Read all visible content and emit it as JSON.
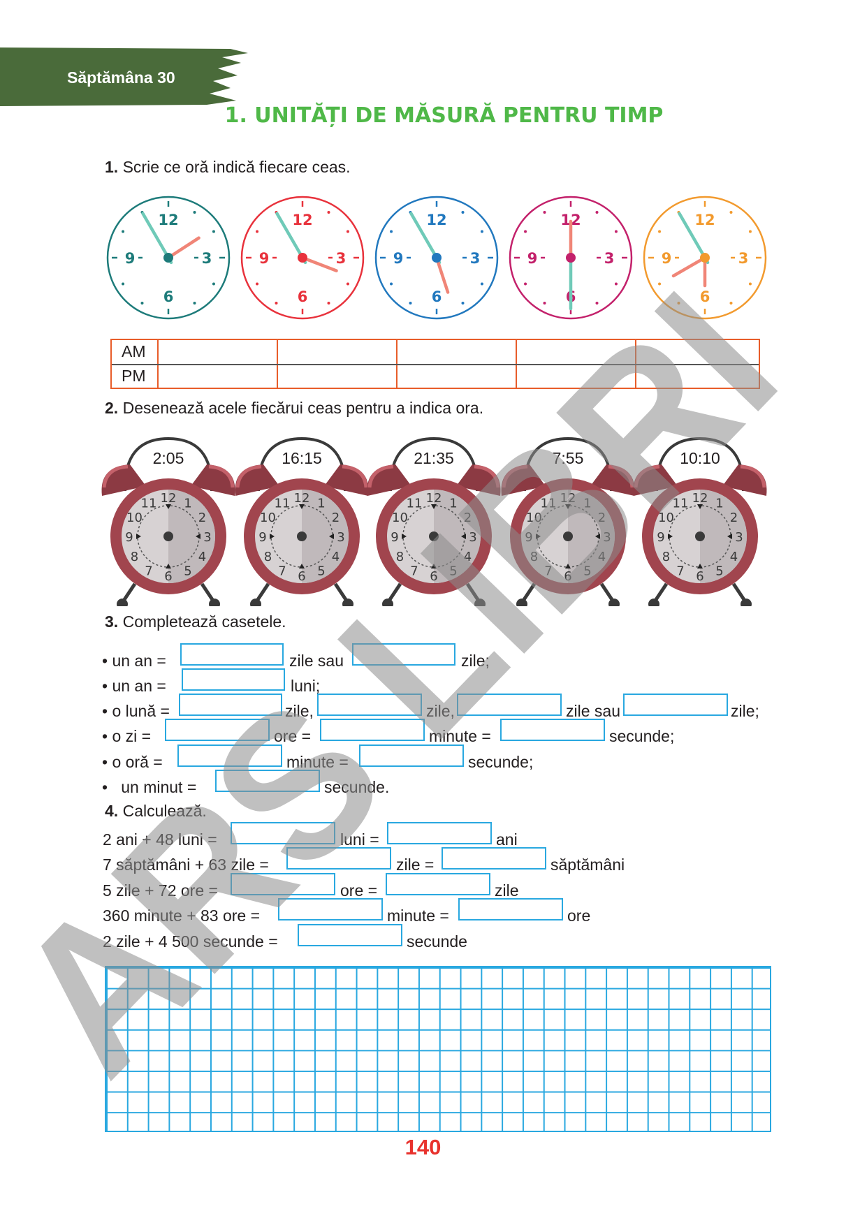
{
  "header": {
    "week": "Săptămâna 30",
    "title": "1. UNITĂȚI DE MĂSURĂ PENTRU TIMP"
  },
  "colors": {
    "banner": "#4a6b3a",
    "title": "#4fb848",
    "box": "#29a8e0",
    "table": "#e85d2a",
    "page_number": "#e8322d",
    "alarm_clock": "#a1454e"
  },
  "exercise1": {
    "number": "1.",
    "instruction": "Scrie ce oră indică fiecare ceas.",
    "clocks": [
      {
        "color": "#1d7b7a",
        "hour": 1.9,
        "minute": 55,
        "numerals": [
          "12",
          "3",
          "6",
          "9"
        ]
      },
      {
        "color": "#e8323c",
        "hour": 3.7,
        "minute": 55,
        "numerals": [
          "12",
          "3",
          "6",
          "9"
        ]
      },
      {
        "color": "#2178be",
        "hour": 5.4,
        "minute": 55,
        "numerals": [
          "12",
          "3",
          "6",
          "9"
        ]
      },
      {
        "color": "#c3216b",
        "hour": 12.0,
        "minute": 30,
        "numerals": [
          "12",
          "3",
          "6",
          "9"
        ]
      },
      {
        "color": "#f29a2e",
        "hour": 8.0,
        "minute": 55,
        "extra_hand_hour": 6.0,
        "numerals": [
          "12",
          "3",
          "6",
          "9"
        ]
      }
    ],
    "table_rows": [
      "AM",
      "PM"
    ]
  },
  "exercise2": {
    "number": "2.",
    "instruction": "Desenează acele fiecărui ceas pentru a indica ora.",
    "times": [
      "2:05",
      "16:15",
      "21:35",
      "7:55",
      "10:10"
    ],
    "dial_numbers": [
      "12",
      "1",
      "2",
      "3",
      "4",
      "5",
      "6",
      "7",
      "8",
      "9",
      "10",
      "11"
    ]
  },
  "exercise3": {
    "number": "3.",
    "instruction": "Completează casetele.",
    "lines": [
      {
        "bullet": "•",
        "parts": [
          "un an =",
          "zile sau",
          "zile;"
        ]
      },
      {
        "bullet": "•",
        "parts": [
          "un an =",
          "luni;"
        ]
      },
      {
        "bullet": "•",
        "parts": [
          "o lună =",
          "zile,",
          "zile,",
          "zile sau",
          "zile;"
        ]
      },
      {
        "bullet": "•",
        "parts": [
          "o zi =",
          "ore =",
          "minute =",
          "secunde;"
        ]
      },
      {
        "bullet": "•",
        "parts": [
          "o oră =",
          "minute =",
          "secunde;"
        ]
      },
      {
        "bullet": "•",
        "parts": [
          "un minut =",
          "secunde."
        ]
      }
    ]
  },
  "exercise4": {
    "number": "4.",
    "instruction": "Calculează.",
    "lines": [
      {
        "parts": [
          "2 ani + 48 luni =",
          "luni =",
          "ani"
        ]
      },
      {
        "parts": [
          "7 săptămâni + 63 zile =",
          "zile =",
          "săptămâni"
        ]
      },
      {
        "parts": [
          "5 zile + 72 ore =",
          "ore =",
          "zile"
        ]
      },
      {
        "parts": [
          "360 minute + 83 ore =",
          "minute =",
          "ore"
        ]
      },
      {
        "parts": [
          "2 zile + 4 500 secunde =",
          "secunde"
        ]
      }
    ]
  },
  "page_number": "140",
  "watermark": "ARS LIBRI"
}
